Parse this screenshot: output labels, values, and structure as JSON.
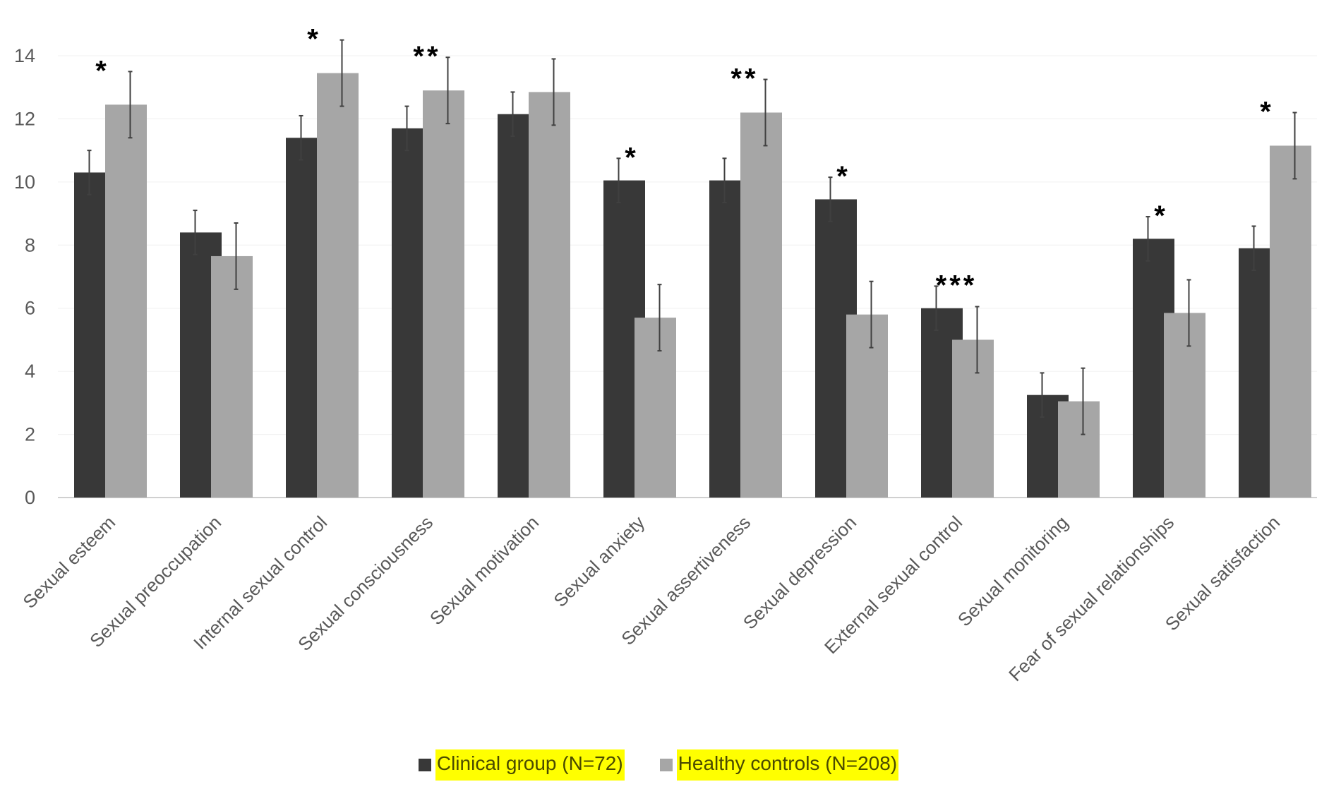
{
  "chart_data": {
    "type": "bar",
    "title": "",
    "xlabel": "",
    "ylabel": "",
    "ylim": [
      0,
      14
    ],
    "yticks": [
      "0",
      "2",
      "4",
      "6",
      "8",
      "10",
      "12",
      "14"
    ],
    "grid": true,
    "legend_placement": "bottom",
    "categories": [
      "Sexual esteem",
      "Sexual preoccupation",
      "Internal sexual control",
      "Sexual consciousness",
      "Sexual motivation",
      "Sexual anxiety",
      "Sexual assertiveness",
      "Sexual depression",
      "External sexual control",
      "Sexual monitoring",
      "Fear of sexual relationships",
      "Sexual satisfaction"
    ],
    "series": [
      {
        "name": "Clinical group (N=72)",
        "color": "#383838",
        "values": [
          10.3,
          8.4,
          11.4,
          11.7,
          12.15,
          10.05,
          10.05,
          9.45,
          6.0,
          3.25,
          8.2,
          7.9
        ],
        "error": [
          0.7,
          0.7,
          0.7,
          0.7,
          0.7,
          0.7,
          0.7,
          0.7,
          0.7,
          0.7,
          0.7,
          0.7
        ]
      },
      {
        "name": "Healthy controls (N=208)",
        "color": "#a6a6a6",
        "values": [
          12.45,
          7.65,
          13.45,
          12.9,
          12.85,
          5.7,
          12.2,
          5.8,
          5.0,
          3.05,
          5.85,
          11.15
        ],
        "error": [
          1.05,
          1.05,
          1.05,
          1.05,
          1.05,
          1.05,
          1.05,
          1.05,
          1.05,
          1.05,
          1.05,
          1.05
        ]
      }
    ],
    "significance": [
      "*",
      "",
      "*",
      "**",
      "",
      "*",
      "**",
      "*",
      "***",
      "",
      "*",
      "*"
    ]
  }
}
